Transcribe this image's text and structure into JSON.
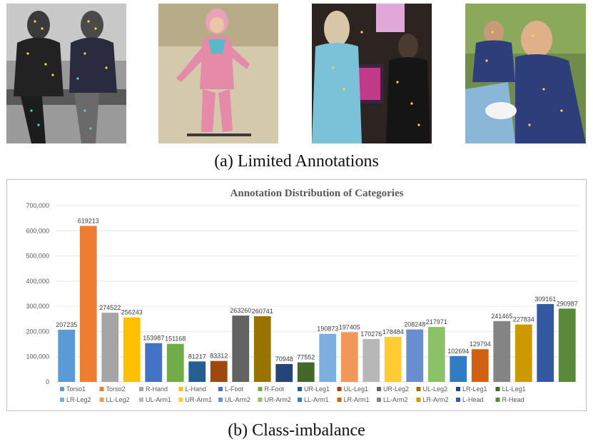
{
  "figure": {
    "caption_a": "(a) Limited Annotations",
    "caption_b": "(b) Class-imbalance"
  },
  "photos": [
    {
      "description_icon": "photo-two-people-on-bench"
    },
    {
      "description_icon": "photo-child-skiing"
    },
    {
      "description_icon": "photo-people-at-screens"
    },
    {
      "description_icon": "photo-boys-at-table"
    }
  ],
  "chart_data": {
    "type": "bar",
    "title": "Annotation Distribution of Categories",
    "xlabel": "",
    "ylabel": "",
    "ylim": [
      0,
      700000
    ],
    "yticks": [
      "0",
      "100,000",
      "200,000",
      "300,000",
      "400,000",
      "500,000",
      "600,000",
      "700,000"
    ],
    "grid": true,
    "legend_position": "bottom",
    "categories": [
      "Torso1",
      "Torso2",
      "R-Hand",
      "L-Hand",
      "L-Foot",
      "R-Foot",
      "UR-Leg1",
      "UL-Leg1",
      "UR-Leg2",
      "UL-Leg2",
      "LR-Leg1",
      "LL-Leg1",
      "LR-Leg2",
      "LL-Leg2",
      "UL-Arm1",
      "UR-Arm1",
      "UL-Arm2",
      "UR-Arm2",
      "LL-Arm1",
      "LR-Arm1",
      "LL-Arm2",
      "LR-Arm2",
      "L-Head",
      "R-Head"
    ],
    "values": [
      207235,
      619213,
      274522,
      256243,
      153987,
      151168,
      81217,
      83312,
      263260,
      260741,
      70948,
      77552,
      190873,
      197405,
      170276,
      178484,
      208248,
      217971,
      102694,
      129794,
      241465,
      227834,
      309161,
      290987
    ],
    "labels": [
      "207235",
      "619213",
      "274522",
      "256243",
      "153987",
      "151168",
      "81217",
      "83312",
      "263260",
      "260741",
      "70948",
      "77552",
      "190873",
      "197405",
      "170276",
      "178484",
      "208248",
      "217971",
      "102694",
      "129794",
      "241465",
      "227834",
      "309161",
      "290987"
    ],
    "colors": [
      "#5b9bd5",
      "#ed7d31",
      "#a5a5a5",
      "#ffc000",
      "#4472c4",
      "#70ad47",
      "#255e91",
      "#9e480e",
      "#636363",
      "#997300",
      "#264478",
      "#43682b",
      "#7cafdd",
      "#f1975a",
      "#b7b7b7",
      "#ffcd33",
      "#698ed0",
      "#8cc168",
      "#327dc2",
      "#d26012",
      "#848484",
      "#cc9a00",
      "#335aa1",
      "#5a8a39"
    ]
  }
}
